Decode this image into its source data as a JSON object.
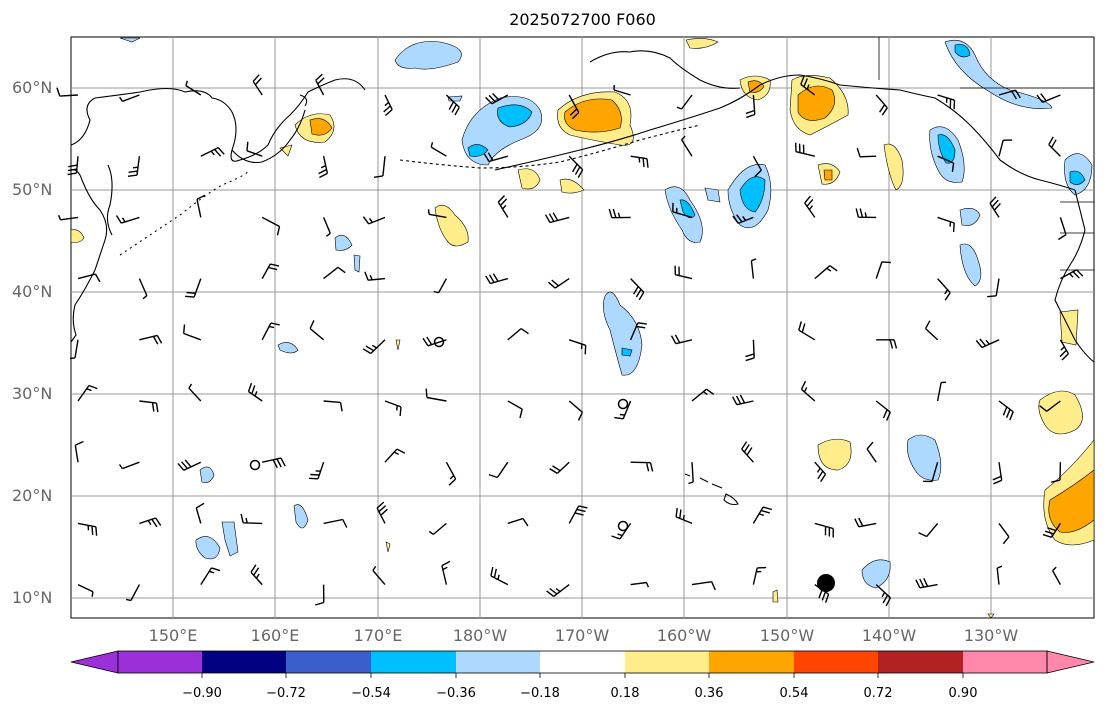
{
  "title": "2025072700 F060",
  "map": {
    "lat_labels": [
      "60°N",
      "50°N",
      "40°N",
      "30°N",
      "20°N",
      "10°N"
    ],
    "lon_labels": [
      "150°E",
      "160°E",
      "170°E",
      "180°W",
      "170°W",
      "160°W",
      "150°W",
      "140°W",
      "130°W"
    ],
    "lat_range": [
      8,
      65
    ],
    "lon_range": [
      140,
      240
    ],
    "grid": true,
    "land_color": "#ffffff",
    "coastline_color": "#000000"
  },
  "colorbar": {
    "ticks": [
      "−0.90",
      "−0.72",
      "−0.54",
      "−0.36",
      "−0.18",
      "0.18",
      "0.36",
      "0.54",
      "0.72",
      "0.90"
    ],
    "colors": [
      "#9b30d9",
      "#000080",
      "#3a5fcd",
      "#00bfff",
      "#add8ff",
      "#ffffff",
      "#ffec8b",
      "#ffa500",
      "#ff4500",
      "#b22222",
      "#ff88aa"
    ],
    "extend": "both"
  }
}
